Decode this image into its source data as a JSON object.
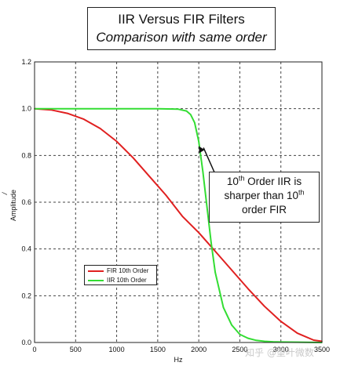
{
  "title_box": {
    "line1": "IIR Versus FIR Filters",
    "line2": "Comparison with same order"
  },
  "annotation": {
    "l1_pre": "10",
    "l1_sup": "th",
    "l1_post": " Order IIR is",
    "l2_pre": "sharper than 10",
    "l2_sup": "th",
    "l3": "order FIR"
  },
  "watermark": "知乎 @望叶微数",
  "chart_data": {
    "type": "line",
    "title": "",
    "xlabel": "Hz",
    "ylabel": "Amplitude",
    "ylabel_mark": "/",
    "xlim": [
      0,
      3500
    ],
    "ylim": [
      0,
      1.2
    ],
    "x_ticks": [
      "0",
      "500",
      "1000",
      "1500",
      "2000",
      "2500",
      "3000",
      "3500"
    ],
    "x_tick_values": [
      0,
      500,
      1000,
      1500,
      2000,
      2500,
      3000,
      3500
    ],
    "y_ticks": [
      "0.0",
      "0.2",
      "0.4",
      "0.6",
      "0.8",
      "1.0",
      "1.2"
    ],
    "y_tick_values": [
      0,
      0.2,
      0.4,
      0.6,
      0.8,
      1.0,
      1.2
    ],
    "grid": true,
    "legend_position": "lower-left",
    "series": [
      {
        "name": "FIR 10th Order",
        "color": "#e02020",
        "x": [
          0,
          200,
          400,
          600,
          800,
          1000,
          1200,
          1400,
          1600,
          1800,
          2000,
          2100,
          2200,
          2400,
          2600,
          2800,
          3000,
          3200,
          3400,
          3500
        ],
        "y": [
          1.0,
          0.995,
          0.98,
          0.955,
          0.915,
          0.86,
          0.79,
          0.71,
          0.63,
          0.54,
          0.47,
          0.43,
          0.39,
          0.31,
          0.23,
          0.155,
          0.09,
          0.04,
          0.01,
          0.005
        ]
      },
      {
        "name": "IIR 10th Order",
        "color": "#33dd33",
        "x": [
          0,
          500,
          1000,
          1500,
          1750,
          1850,
          1900,
          1950,
          2000,
          2050,
          2100,
          2150,
          2200,
          2300,
          2400,
          2500,
          2600,
          2700,
          2800,
          2900,
          3000,
          3500
        ],
        "y": [
          1.0,
          1.0,
          1.0,
          1.0,
          0.998,
          0.99,
          0.975,
          0.94,
          0.86,
          0.73,
          0.58,
          0.43,
          0.3,
          0.15,
          0.075,
          0.035,
          0.018,
          0.009,
          0.005,
          0.003,
          0.002,
          0.0
        ]
      }
    ],
    "annotation_arrow_target": {
      "x": 2000,
      "y": 0.84
    }
  }
}
